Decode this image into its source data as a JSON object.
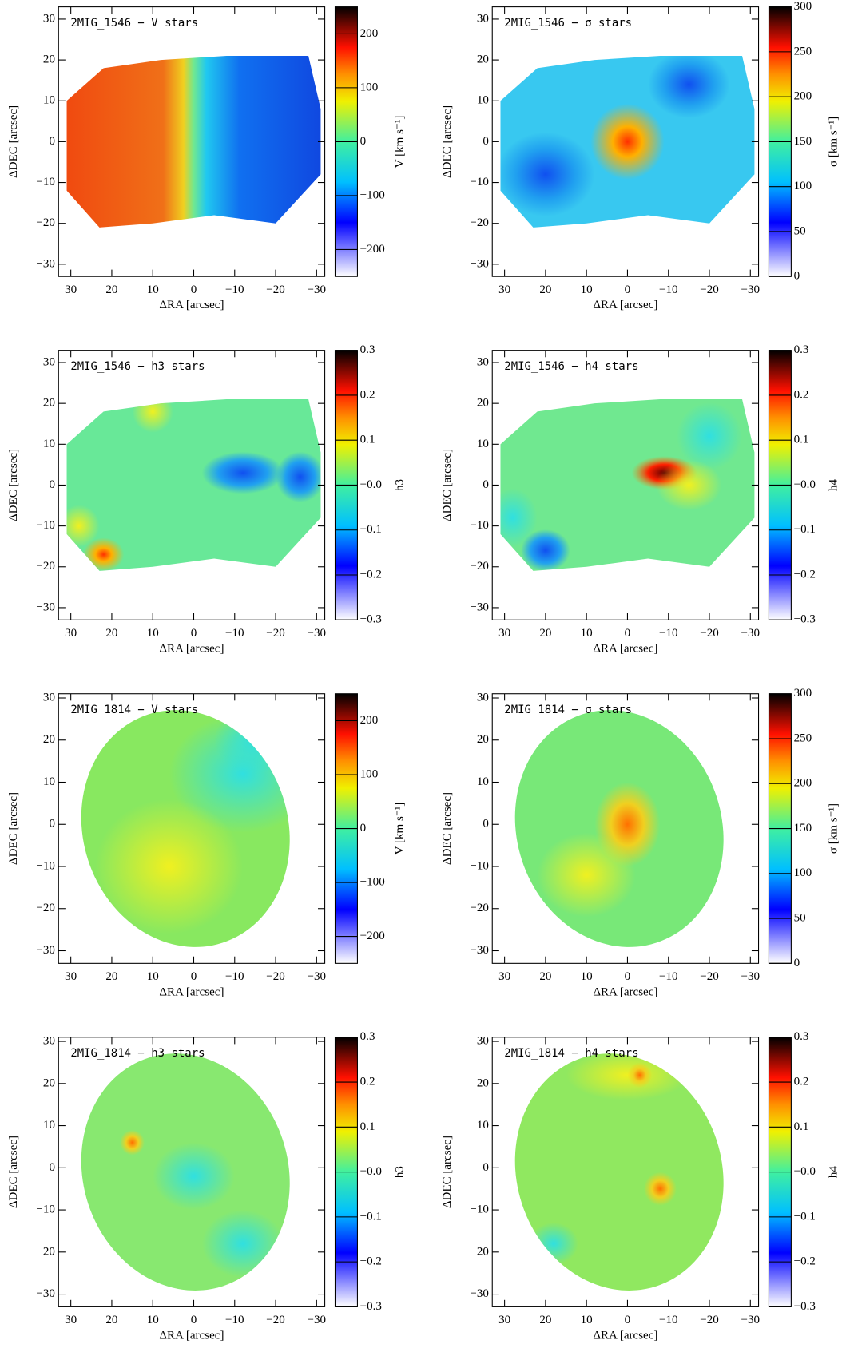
{
  "chart_data": [
    {
      "type": "heatmap",
      "title": "2MIG_1546 − V stars",
      "xlabel": "ΔRA [arcsec]",
      "ylabel": "ΔDEC [arcsec]",
      "xlim": [
        33,
        -32
      ],
      "ylim": [
        -33,
        33
      ],
      "xticks": [
        30,
        20,
        10,
        0,
        {
          "value": -10,
          "label": "−10"
        },
        {
          "value": -20,
          "label": "−20"
        },
        {
          "value": -30,
          "label": "−30"
        }
      ],
      "yticks": [
        30,
        20,
        10,
        0,
        {
          "value": -10,
          "label": "−10"
        },
        {
          "value": -20,
          "label": "−20"
        },
        {
          "value": -30,
          "label": "−30"
        }
      ],
      "colorbar": {
        "label": "V [km s⁻¹]",
        "lim": [
          -250,
          250
        ],
        "ticks": [
          200,
          100,
          0,
          {
            "value": -100,
            "label": "−100"
          },
          {
            "value": -200,
            "label": "−200"
          }
        ]
      }
    },
    {
      "type": "heatmap",
      "title": "2MIG_1546 − σ stars",
      "xlabel": "ΔRA [arcsec]",
      "ylabel": "ΔDEC [arcsec]",
      "xlim": [
        33,
        -32
      ],
      "ylim": [
        -33,
        33
      ],
      "xticks": [
        30,
        20,
        10,
        0,
        {
          "value": -10,
          "label": "−10"
        },
        {
          "value": -20,
          "label": "−20"
        },
        {
          "value": -30,
          "label": "−30"
        }
      ],
      "yticks": [
        30,
        20,
        10,
        0,
        {
          "value": -10,
          "label": "−10"
        },
        {
          "value": -20,
          "label": "−20"
        },
        {
          "value": -30,
          "label": "−30"
        }
      ],
      "colorbar": {
        "label": "σ [km s⁻¹]",
        "lim": [
          0,
          300
        ],
        "ticks": [
          300,
          250,
          200,
          150,
          100,
          50,
          0
        ]
      }
    },
    {
      "type": "heatmap",
      "title": "2MIG_1546 − h3 stars",
      "xlabel": "ΔRA [arcsec]",
      "ylabel": "ΔDEC [arcsec]",
      "xlim": [
        33,
        -32
      ],
      "ylim": [
        -33,
        33
      ],
      "xticks": [
        30,
        20,
        10,
        0,
        {
          "value": -10,
          "label": "−10"
        },
        {
          "value": -20,
          "label": "−20"
        },
        {
          "value": -30,
          "label": "−30"
        }
      ],
      "yticks": [
        30,
        20,
        10,
        0,
        {
          "value": -10,
          "label": "−10"
        },
        {
          "value": -20,
          "label": "−20"
        },
        {
          "value": -30,
          "label": "−30"
        }
      ],
      "colorbar": {
        "label": "h3",
        "lim": [
          -0.3,
          0.3
        ],
        "ticks": [
          0.3,
          0.2,
          0.1,
          {
            "value": 0,
            "label": "−0.0"
          },
          {
            "value": -0.1,
            "label": "−0.1"
          },
          {
            "value": -0.2,
            "label": "−0.2"
          },
          {
            "value": -0.3,
            "label": "−0.3"
          }
        ]
      }
    },
    {
      "type": "heatmap",
      "title": "2MIG_1546 − h4 stars",
      "xlabel": "ΔRA [arcsec]",
      "ylabel": "ΔDEC [arcsec]",
      "xlim": [
        33,
        -32
      ],
      "ylim": [
        -33,
        33
      ],
      "xticks": [
        30,
        20,
        10,
        0,
        {
          "value": -10,
          "label": "−10"
        },
        {
          "value": -20,
          "label": "−20"
        },
        {
          "value": -30,
          "label": "−30"
        }
      ],
      "yticks": [
        30,
        20,
        10,
        0,
        {
          "value": -10,
          "label": "−10"
        },
        {
          "value": -20,
          "label": "−20"
        },
        {
          "value": -30,
          "label": "−30"
        }
      ],
      "colorbar": {
        "label": "h4",
        "lim": [
          -0.3,
          0.3
        ],
        "ticks": [
          0.3,
          0.2,
          0.1,
          {
            "value": 0,
            "label": "−0.0"
          },
          {
            "value": -0.1,
            "label": "−0.1"
          },
          {
            "value": -0.2,
            "label": "−0.2"
          },
          {
            "value": -0.3,
            "label": "−0.3"
          }
        ]
      }
    },
    {
      "type": "heatmap",
      "title": "2MIG_1814 − V stars",
      "xlabel": "ΔRA [arcsec]",
      "ylabel": "ΔDEC [arcsec]",
      "xlim": [
        33,
        -32
      ],
      "ylim": [
        -33,
        31
      ],
      "xticks": [
        30,
        20,
        10,
        0,
        {
          "value": -10,
          "label": "−10"
        },
        {
          "value": -20,
          "label": "−20"
        },
        {
          "value": -30,
          "label": "−30"
        }
      ],
      "yticks": [
        30,
        20,
        10,
        0,
        {
          "value": -10,
          "label": "−10"
        },
        {
          "value": -20,
          "label": "−20"
        },
        {
          "value": -30,
          "label": "−30"
        }
      ],
      "colorbar": {
        "label": "V [km s⁻¹]",
        "lim": [
          -250,
          250
        ],
        "ticks": [
          200,
          100,
          0,
          {
            "value": -100,
            "label": "−100"
          },
          {
            "value": -200,
            "label": "−200"
          }
        ]
      }
    },
    {
      "type": "heatmap",
      "title": "2MIG_1814 − σ stars",
      "xlabel": "ΔRA [arcsec]",
      "ylabel": "ΔDEC [arcsec]",
      "xlim": [
        33,
        -32
      ],
      "ylim": [
        -33,
        31
      ],
      "xticks": [
        30,
        20,
        10,
        0,
        {
          "value": -10,
          "label": "−10"
        },
        {
          "value": -20,
          "label": "−20"
        },
        {
          "value": -30,
          "label": "−30"
        }
      ],
      "yticks": [
        30,
        20,
        10,
        0,
        {
          "value": -10,
          "label": "−10"
        },
        {
          "value": -20,
          "label": "−20"
        },
        {
          "value": -30,
          "label": "−30"
        }
      ],
      "colorbar": {
        "label": "σ [km s⁻¹]",
        "lim": [
          0,
          300
        ],
        "ticks": [
          300,
          250,
          200,
          150,
          100,
          50,
          0
        ]
      }
    },
    {
      "type": "heatmap",
      "title": "2MIG_1814 − h3 stars",
      "xlabel": "ΔRA [arcsec]",
      "ylabel": "ΔDEC [arcsec]",
      "xlim": [
        33,
        -32
      ],
      "ylim": [
        -33,
        31
      ],
      "xticks": [
        30,
        20,
        10,
        0,
        {
          "value": -10,
          "label": "−10"
        },
        {
          "value": -20,
          "label": "−20"
        },
        {
          "value": -30,
          "label": "−30"
        }
      ],
      "yticks": [
        30,
        20,
        10,
        0,
        {
          "value": -10,
          "label": "−10"
        },
        {
          "value": -20,
          "label": "−20"
        },
        {
          "value": -30,
          "label": "−30"
        }
      ],
      "colorbar": {
        "label": "h3",
        "lim": [
          -0.3,
          0.3
        ],
        "ticks": [
          0.3,
          0.2,
          0.1,
          {
            "value": 0,
            "label": "−0.0"
          },
          {
            "value": -0.1,
            "label": "−0.1"
          },
          {
            "value": -0.2,
            "label": "−0.2"
          },
          {
            "value": -0.3,
            "label": "−0.3"
          }
        ]
      }
    },
    {
      "type": "heatmap",
      "title": "2MIG_1814 − h4 stars",
      "xlabel": "ΔRA [arcsec]",
      "ylabel": "ΔDEC [arcsec]",
      "xlim": [
        33,
        -32
      ],
      "ylim": [
        -33,
        31
      ],
      "xticks": [
        30,
        20,
        10,
        0,
        {
          "value": -10,
          "label": "−10"
        },
        {
          "value": -20,
          "label": "−20"
        },
        {
          "value": -30,
          "label": "−30"
        }
      ],
      "yticks": [
        30,
        20,
        10,
        0,
        {
          "value": -10,
          "label": "−10"
        },
        {
          "value": -20,
          "label": "−20"
        },
        {
          "value": -30,
          "label": "−30"
        }
      ],
      "colorbar": {
        "label": "h4",
        "lim": [
          -0.3,
          0.3
        ],
        "ticks": [
          0.3,
          0.2,
          0.1,
          {
            "value": 0,
            "label": "−0.0"
          },
          {
            "value": -0.1,
            "label": "−0.1"
          },
          {
            "value": -0.2,
            "label": "−0.2"
          },
          {
            "value": -0.3,
            "label": "−0.3"
          }
        ]
      }
    }
  ]
}
